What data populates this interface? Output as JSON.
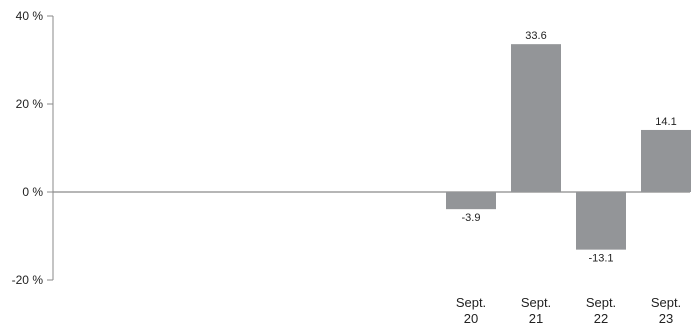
{
  "chart_data": {
    "type": "bar",
    "categories": [
      {
        "line1": "Sept.",
        "line2": "20"
      },
      {
        "line1": "Sept.",
        "line2": "21"
      },
      {
        "line1": "Sept.",
        "line2": "22"
      },
      {
        "line1": "Sept.",
        "line2": "23"
      }
    ],
    "values": [
      -3.9,
      33.6,
      -13.1,
      14.1
    ],
    "value_labels": [
      "-3.9",
      "33.6",
      "-13.1",
      "14.1"
    ],
    "y_ticks": [
      40,
      20,
      0,
      -20
    ],
    "y_tick_labels": [
      "40 %",
      "20 %",
      "0 %",
      "-20 %"
    ],
    "ylim": [
      -20,
      40
    ],
    "grid": false,
    "legend": "none",
    "title": "",
    "xlabel": "",
    "ylabel": "",
    "colors": {
      "bar": "#939598",
      "axis": "#8a8a8a",
      "text": "#222222"
    }
  }
}
